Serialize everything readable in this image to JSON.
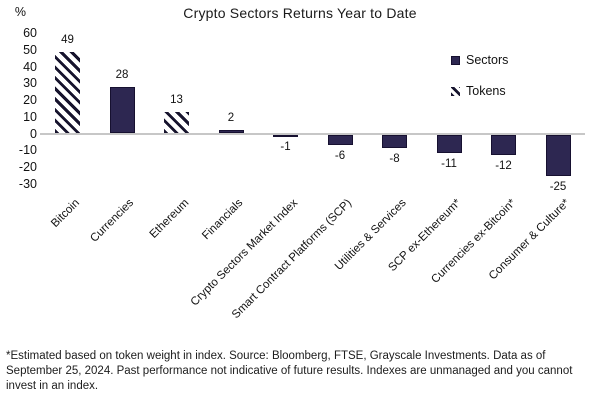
{
  "title": "Crypto Sectors Returns Year to Date",
  "legend": {
    "sectors_label": "Sectors",
    "tokens_label": "Tokens"
  },
  "chart_data": {
    "type": "bar",
    "title": "Crypto Sectors Returns Year to Date",
    "categories": [
      "Bitcoin",
      "Currencies",
      "Ethereum",
      "Financials",
      "Crypto Sectors Market Index",
      "Smart Contract Platforms (SCP)",
      "Utilities & Services",
      "SCP ex-Ethereum*",
      "Currencies ex-Bitcoin*",
      "Consumer & Culture*"
    ],
    "values": [
      49,
      28,
      13,
      2,
      -1,
      -6,
      -8,
      -11,
      -12,
      -25
    ],
    "bar_styles": [
      "tokens",
      "sectors",
      "tokens",
      "sectors",
      "sectors",
      "sectors",
      "sectors",
      "sectors",
      "sectors",
      "sectors"
    ],
    "legend_entries": [
      {
        "label": "Sectors",
        "style": "solid"
      },
      {
        "label": "Tokens",
        "style": "hatched"
      }
    ],
    "legend_position": "right",
    "ylabel": "%",
    "ylim": [
      -30,
      60
    ],
    "yticks": [
      60,
      50,
      40,
      30,
      20,
      10,
      0,
      -10,
      -20,
      -30
    ],
    "grid": false,
    "data_labels": true
  },
  "colors": {
    "sectors_fill": "#2d2751",
    "bar_border": "#161030",
    "hatch_stroke": "#17142e",
    "zero_line": "#c7c7c7",
    "text": "#121212"
  },
  "footnote": "*Estimated based on token weight in index. Source: Bloomberg, FTSE, Grayscale Investments. Data as of September 25, 2024. Past performance not indicative of future results. Indexes are unmanaged and you cannot invest in an index."
}
